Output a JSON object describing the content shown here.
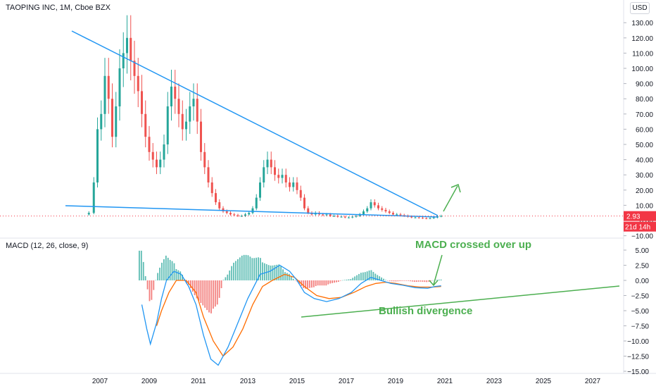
{
  "header": {
    "title": "TAOPING INC, 1M, Cboe BZX",
    "currency": "USD"
  },
  "macd_panel": {
    "title": "MACD (12, 26, close, 9)"
  },
  "price_badge": {
    "value": "2.93",
    "countdown": "21d 14h",
    "color": "#f23645"
  },
  "annotations": {
    "macd_cross": "MACD crossed over up",
    "divergence": "Bullish divergence",
    "color": "#4caf50"
  },
  "colors": {
    "up": "#26a69a",
    "down": "#ef5350",
    "trendline": "#2196f3",
    "macd_line": "#2196f3",
    "signal_line": "#ff6d00",
    "annotation": "#4caf50"
  },
  "chart_data": [
    {
      "type": "candlestick",
      "title": "TAOPING INC, 1M, Cboe BZX",
      "x_ticks": [
        "2007",
        "2009",
        "2011",
        "2013",
        "2015",
        "2017",
        "2019",
        "2021",
        "2023",
        "2025",
        "2027"
      ],
      "y_ticks": [
        "130.00",
        "120.00",
        "110.00",
        "100.00",
        "90.00",
        "80.00",
        "70.00",
        "60.00",
        "50.00",
        "40.00",
        "30.00",
        "20.00",
        "10.00",
        "0.00",
        "−10.00"
      ],
      "ylim": [
        -10,
        135
      ],
      "last_price": 2.93,
      "note": "approximate monthly closes read from chart",
      "series": [
        {
          "x": 2006.55,
          "y": 5
        },
        {
          "x": 2006.75,
          "y": 25
        },
        {
          "x": 2006.9,
          "y": 60
        },
        {
          "x": 2007.05,
          "y": 70
        },
        {
          "x": 2007.2,
          "y": 95
        },
        {
          "x": 2007.35,
          "y": 80
        },
        {
          "x": 2007.5,
          "y": 55
        },
        {
          "x": 2007.65,
          "y": 75
        },
        {
          "x": 2007.8,
          "y": 100
        },
        {
          "x": 2007.95,
          "y": 110
        },
        {
          "x": 2008.1,
          "y": 120
        },
        {
          "x": 2008.25,
          "y": 105
        },
        {
          "x": 2008.4,
          "y": 95
        },
        {
          "x": 2008.55,
          "y": 85
        },
        {
          "x": 2008.7,
          "y": 70
        },
        {
          "x": 2008.85,
          "y": 55
        },
        {
          "x": 2009.0,
          "y": 45
        },
        {
          "x": 2009.15,
          "y": 40
        },
        {
          "x": 2009.3,
          "y": 35
        },
        {
          "x": 2009.45,
          "y": 40
        },
        {
          "x": 2009.6,
          "y": 50
        },
        {
          "x": 2009.75,
          "y": 75
        },
        {
          "x": 2009.9,
          "y": 88
        },
        {
          "x": 2010.05,
          "y": 80
        },
        {
          "x": 2010.2,
          "y": 70
        },
        {
          "x": 2010.35,
          "y": 60
        },
        {
          "x": 2010.5,
          "y": 65
        },
        {
          "x": 2010.65,
          "y": 75
        },
        {
          "x": 2010.8,
          "y": 80
        },
        {
          "x": 2010.95,
          "y": 65
        },
        {
          "x": 2011.1,
          "y": 45
        },
        {
          "x": 2011.25,
          "y": 35
        },
        {
          "x": 2011.4,
          "y": 25
        },
        {
          "x": 2011.55,
          "y": 18
        },
        {
          "x": 2011.7,
          "y": 12
        },
        {
          "x": 2011.85,
          "y": 8
        },
        {
          "x": 2012.0,
          "y": 6
        },
        {
          "x": 2012.15,
          "y": 5
        },
        {
          "x": 2012.3,
          "y": 4
        },
        {
          "x": 2012.45,
          "y": 3.5
        },
        {
          "x": 2012.6,
          "y": 3
        },
        {
          "x": 2012.75,
          "y": 3
        },
        {
          "x": 2012.9,
          "y": 4
        },
        {
          "x": 2013.05,
          "y": 5
        },
        {
          "x": 2013.2,
          "y": 8
        },
        {
          "x": 2013.35,
          "y": 15
        },
        {
          "x": 2013.5,
          "y": 25
        },
        {
          "x": 2013.65,
          "y": 35
        },
        {
          "x": 2013.8,
          "y": 40
        },
        {
          "x": 2013.95,
          "y": 35
        },
        {
          "x": 2014.1,
          "y": 30
        },
        {
          "x": 2014.25,
          "y": 28
        },
        {
          "x": 2014.4,
          "y": 30
        },
        {
          "x": 2014.55,
          "y": 25
        },
        {
          "x": 2014.7,
          "y": 22
        },
        {
          "x": 2014.85,
          "y": 25
        },
        {
          "x": 2015.0,
          "y": 20
        },
        {
          "x": 2015.15,
          "y": 15
        },
        {
          "x": 2015.3,
          "y": 8
        },
        {
          "x": 2015.45,
          "y": 5
        },
        {
          "x": 2015.6,
          "y": 4
        },
        {
          "x": 2015.75,
          "y": 5
        },
        {
          "x": 2015.9,
          "y": 4
        },
        {
          "x": 2016.05,
          "y": 3.5
        },
        {
          "x": 2016.2,
          "y": 4
        },
        {
          "x": 2016.35,
          "y": 3
        },
        {
          "x": 2016.5,
          "y": 3
        },
        {
          "x": 2016.65,
          "y": 2.5
        },
        {
          "x": 2016.8,
          "y": 2.5
        },
        {
          "x": 2016.95,
          "y": 2
        },
        {
          "x": 2017.1,
          "y": 2
        },
        {
          "x": 2017.25,
          "y": 2.5
        },
        {
          "x": 2017.4,
          "y": 3
        },
        {
          "x": 2017.55,
          "y": 4
        },
        {
          "x": 2017.7,
          "y": 6
        },
        {
          "x": 2017.85,
          "y": 8
        },
        {
          "x": 2018.0,
          "y": 12
        },
        {
          "x": 2018.15,
          "y": 10
        },
        {
          "x": 2018.3,
          "y": 8
        },
        {
          "x": 2018.45,
          "y": 7
        },
        {
          "x": 2018.6,
          "y": 6
        },
        {
          "x": 2018.75,
          "y": 5
        },
        {
          "x": 2018.9,
          "y": 4
        },
        {
          "x": 2019.05,
          "y": 4
        },
        {
          "x": 2019.2,
          "y": 3.5
        },
        {
          "x": 2019.35,
          "y": 3
        },
        {
          "x": 2019.5,
          "y": 2.5
        },
        {
          "x": 2019.65,
          "y": 2
        },
        {
          "x": 2019.8,
          "y": 2
        },
        {
          "x": 2019.95,
          "y": 1.8
        },
        {
          "x": 2020.1,
          "y": 1.5
        },
        {
          "x": 2020.25,
          "y": 1.3
        },
        {
          "x": 2020.4,
          "y": 1.5
        },
        {
          "x": 2020.55,
          "y": 2
        },
        {
          "x": 2020.7,
          "y": 2.8
        },
        {
          "x": 2020.85,
          "y": 2.93
        }
      ]
    },
    {
      "type": "line",
      "title": "MACD (12, 26, close, 9)",
      "y_ticks": [
        "5.00",
        "2.50",
        "0.00",
        "−2.50",
        "−5.00",
        "−7.50",
        "−10.00",
        "−12.50",
        "−15.00"
      ],
      "ylim": [
        -15,
        5
      ],
      "series": [
        {
          "name": "MACD",
          "points": [
            [
              2008.7,
              -4
            ],
            [
              2008.9,
              -8
            ],
            [
              2009.05,
              -10.5
            ],
            [
              2009.3,
              -7
            ],
            [
              2009.5,
              -3
            ],
            [
              2009.7,
              0
            ],
            [
              2010.0,
              1.5
            ],
            [
              2010.3,
              1
            ],
            [
              2010.6,
              -1
            ],
            [
              2010.9,
              -4
            ],
            [
              2011.2,
              -9
            ],
            [
              2011.5,
              -13
            ],
            [
              2011.8,
              -14
            ],
            [
              2012.2,
              -11
            ],
            [
              2012.6,
              -7
            ],
            [
              2013.0,
              -3
            ],
            [
              2013.5,
              1
            ],
            [
              2013.9,
              1.5
            ],
            [
              2014.3,
              2.5
            ],
            [
              2014.7,
              1.5
            ],
            [
              2015.0,
              0
            ],
            [
              2015.3,
              -2
            ],
            [
              2015.7,
              -3
            ],
            [
              2016.2,
              -3.5
            ],
            [
              2016.7,
              -3
            ],
            [
              2017.2,
              -2
            ],
            [
              2017.6,
              -0.5
            ],
            [
              2018.0,
              0.5
            ],
            [
              2018.4,
              0
            ],
            [
              2018.8,
              -0.5
            ],
            [
              2019.3,
              -0.8
            ],
            [
              2019.8,
              -1.2
            ],
            [
              2020.3,
              -1.3
            ],
            [
              2020.6,
              -1.0
            ],
            [
              2020.85,
              -0.9
            ]
          ]
        },
        {
          "name": "Signal",
          "points": [
            [
              2009.3,
              -7.5
            ],
            [
              2009.5,
              -5
            ],
            [
              2009.8,
              -2
            ],
            [
              2010.1,
              0
            ],
            [
              2010.5,
              0
            ],
            [
              2010.9,
              -2
            ],
            [
              2011.2,
              -6
            ],
            [
              2011.6,
              -10
            ],
            [
              2012.0,
              -12.5
            ],
            [
              2012.4,
              -11
            ],
            [
              2012.8,
              -8
            ],
            [
              2013.2,
              -4
            ],
            [
              2013.6,
              -1
            ],
            [
              2014.0,
              0
            ],
            [
              2014.5,
              1
            ],
            [
              2014.9,
              0.5
            ],
            [
              2015.3,
              -1
            ],
            [
              2015.8,
              -2.5
            ],
            [
              2016.3,
              -3
            ],
            [
              2016.8,
              -2.8
            ],
            [
              2017.3,
              -2
            ],
            [
              2017.8,
              -1
            ],
            [
              2018.2,
              -0.5
            ],
            [
              2018.6,
              -0.3
            ],
            [
              2019.0,
              -0.5
            ],
            [
              2019.5,
              -0.9
            ],
            [
              2020.0,
              -1.1
            ],
            [
              2020.5,
              -1.1
            ],
            [
              2020.85,
              -1.0
            ]
          ]
        }
      ],
      "histogram_note": "green bars above zero, red bars below"
    }
  ]
}
